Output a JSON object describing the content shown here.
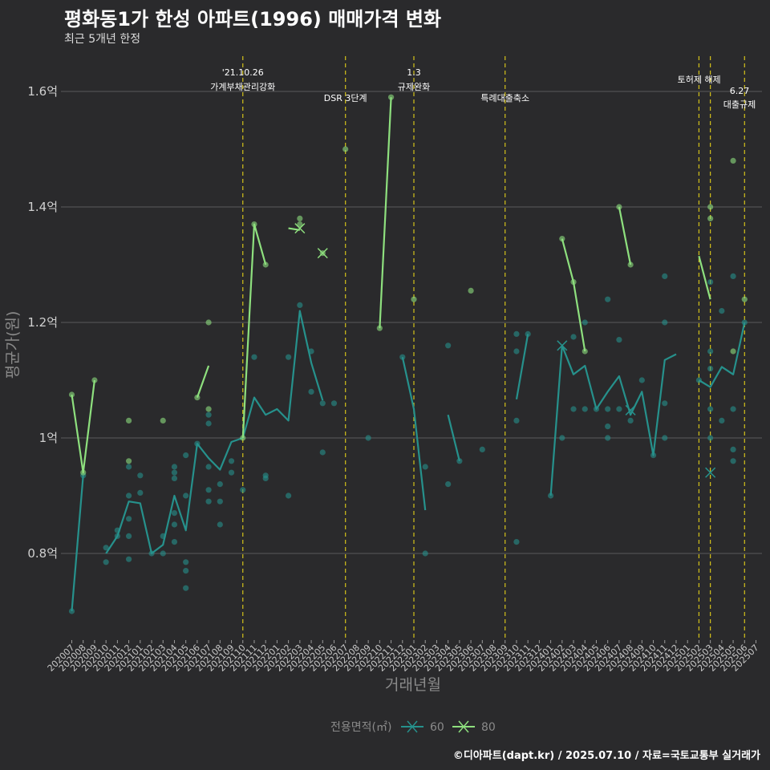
{
  "title": "평화동1가 한성 아파트(1996) 매매가격 변화",
  "subtitle": "최근 5개년 한정",
  "caption": "©디아파트(dapt.kr) / 2025.07.10 / 자료=국토교통부 실거래가",
  "chart_data": {
    "type": "line",
    "xlabel": "거래년월",
    "ylabel": "평균가(원)",
    "ylim": [
      0.65,
      1.66
    ],
    "yticks": [
      0.8,
      1.0,
      1.2,
      1.4,
      1.6
    ],
    "ytick_labels": [
      "0.8억",
      "1억",
      "1.2억",
      "1.4억",
      "1.6억"
    ],
    "grid": true,
    "legend_title": "전용면적(㎡)",
    "legend_position": "bottom",
    "categories": [
      "202007",
      "202008",
      "202009",
      "202010",
      "202011",
      "202012",
      "202101",
      "202102",
      "202103",
      "202104",
      "202105",
      "202106",
      "202107",
      "202108",
      "202109",
      "202110",
      "202111",
      "202112",
      "202201",
      "202202",
      "202203",
      "202204",
      "202205",
      "202206",
      "202207",
      "202208",
      "202209",
      "202210",
      "202211",
      "202212",
      "202301",
      "202302",
      "202303",
      "202304",
      "202305",
      "202306",
      "202307",
      "202308",
      "202309",
      "202310",
      "202311",
      "202312",
      "202401",
      "202402",
      "202403",
      "202404",
      "202405",
      "202406",
      "202407",
      "202408",
      "202409",
      "202410",
      "202411",
      "202412",
      "202501",
      "202502",
      "202503",
      "202504",
      "202505",
      "202506",
      "202507"
    ],
    "series": [
      {
        "name": "60",
        "color": "#26918c",
        "line": [
          [
            0,
            0.7
          ],
          [
            1,
            0.935
          ],
          [
            2,
            null
          ],
          [
            3,
            0.8
          ],
          [
            4,
            0.83
          ],
          [
            5,
            0.89
          ],
          [
            6,
            0.887
          ],
          [
            7,
            0.8
          ],
          [
            8,
            0.815
          ],
          [
            9,
            0.9
          ],
          [
            10,
            0.84
          ],
          [
            11,
            0.99
          ],
          [
            12,
            0.965
          ],
          [
            13,
            0.945
          ],
          [
            14,
            0.993
          ],
          [
            15,
            1.0
          ],
          [
            16,
            1.07
          ],
          [
            17,
            1.04
          ],
          [
            18,
            1.05
          ],
          [
            19,
            1.03
          ],
          [
            20,
            1.22
          ],
          [
            21,
            1.13
          ],
          [
            22,
            1.065
          ],
          [
            23,
            null
          ],
          [
            24,
            1.05
          ],
          [
            25,
            null
          ],
          [
            26,
            1.0
          ],
          [
            27,
            null
          ],
          [
            28,
            null
          ],
          [
            29,
            1.14
          ],
          [
            30,
            1.05
          ],
          [
            31,
            0.875
          ],
          [
            32,
            null
          ],
          [
            33,
            1.04
          ],
          [
            34,
            0.96
          ],
          [
            35,
            null
          ],
          [
            36,
            null
          ],
          [
            37,
            null
          ],
          [
            38,
            null
          ],
          [
            39,
            1.067
          ],
          [
            40,
            1.18
          ],
          [
            41,
            null
          ],
          [
            42,
            0.9
          ],
          [
            43,
            1.16
          ],
          [
            44,
            1.11
          ],
          [
            45,
            1.125
          ],
          [
            46,
            1.05
          ],
          [
            47,
            1.08
          ],
          [
            48,
            1.107
          ],
          [
            49,
            1.04
          ],
          [
            50,
            1.08
          ],
          [
            51,
            0.97
          ],
          [
            52,
            1.135
          ],
          [
            53,
            1.145
          ],
          [
            54,
            null
          ],
          [
            55,
            1.1
          ],
          [
            56,
            1.088
          ],
          [
            57,
            1.123
          ],
          [
            58,
            1.11
          ],
          [
            59,
            1.2
          ],
          [
            60,
            null
          ]
        ],
        "points": [
          [
            0,
            0.7
          ],
          [
            1,
            0.935
          ],
          [
            3,
            0.785
          ],
          [
            3,
            0.81
          ],
          [
            4,
            0.84
          ],
          [
            4,
            0.83
          ],
          [
            5,
            0.95
          ],
          [
            5,
            0.9
          ],
          [
            5,
            0.86
          ],
          [
            5,
            0.83
          ],
          [
            5,
            0.79
          ],
          [
            6,
            0.905
          ],
          [
            6,
            0.935
          ],
          [
            7,
            0.8
          ],
          [
            8,
            0.8
          ],
          [
            8,
            0.83
          ],
          [
            9,
            0.95
          ],
          [
            9,
            0.94
          ],
          [
            9,
            0.93
          ],
          [
            9,
            0.87
          ],
          [
            9,
            0.85
          ],
          [
            9,
            0.82
          ],
          [
            10,
            0.97
          ],
          [
            10,
            0.9
          ],
          [
            10,
            0.785
          ],
          [
            10,
            0.77
          ],
          [
            10,
            0.74
          ],
          [
            11,
            0.99
          ],
          [
            12,
            1.04
          ],
          [
            12,
            1.025
          ],
          [
            12,
            0.95
          ],
          [
            12,
            0.91
          ],
          [
            12,
            0.89
          ],
          [
            13,
            0.92
          ],
          [
            13,
            0.89
          ],
          [
            13,
            0.85
          ],
          [
            14,
            0.96
          ],
          [
            14,
            0.94
          ],
          [
            15,
            0.91
          ],
          [
            16,
            1.14
          ],
          [
            17,
            0.935
          ],
          [
            17,
            0.93
          ],
          [
            19,
            0.9
          ],
          [
            19,
            1.14
          ],
          [
            20,
            1.23
          ],
          [
            21,
            1.15
          ],
          [
            21,
            1.08
          ],
          [
            22,
            1.06
          ],
          [
            22,
            0.975
          ],
          [
            23,
            1.06
          ],
          [
            26,
            1.0
          ],
          [
            29,
            1.14
          ],
          [
            31,
            0.95
          ],
          [
            31,
            0.8
          ],
          [
            33,
            0.92
          ],
          [
            33,
            1.16
          ],
          [
            34,
            0.96
          ],
          [
            36,
            0.98
          ],
          [
            39,
            1.18
          ],
          [
            39,
            1.15
          ],
          [
            39,
            1.03
          ],
          [
            39,
            0.82
          ],
          [
            40,
            1.18
          ],
          [
            42,
            0.9
          ],
          [
            43,
            1.0
          ],
          [
            44,
            1.175
          ],
          [
            44,
            1.05
          ],
          [
            45,
            1.2
          ],
          [
            45,
            1.05
          ],
          [
            46,
            1.05
          ],
          [
            47,
            1.24
          ],
          [
            47,
            1.05
          ],
          [
            47,
            1.02
          ],
          [
            47,
            1.0
          ],
          [
            48,
            1.17
          ],
          [
            48,
            1.05
          ],
          [
            49,
            1.03
          ],
          [
            50,
            1.1
          ],
          [
            51,
            0.97
          ],
          [
            52,
            1.28
          ],
          [
            52,
            1.2
          ],
          [
            52,
            1.06
          ],
          [
            52,
            1.0
          ],
          [
            55,
            1.1
          ],
          [
            56,
            1.27
          ],
          [
            56,
            1.15
          ],
          [
            56,
            1.12
          ],
          [
            56,
            1.05
          ],
          [
            56,
            1.0
          ],
          [
            57,
            1.22
          ],
          [
            57,
            1.03
          ],
          [
            58,
            1.28
          ],
          [
            58,
            1.05
          ],
          [
            58,
            0.98
          ],
          [
            58,
            0.96
          ],
          [
            59,
            1.2
          ]
        ],
        "markers": [
          [
            43,
            1.16
          ],
          [
            49,
            1.048
          ],
          [
            56,
            0.94
          ]
        ]
      },
      {
        "name": "80",
        "color": "#8ee07e",
        "line": [
          [
            0,
            1.075
          ],
          [
            1,
            0.94
          ],
          [
            2,
            1.1
          ],
          [
            3,
            null
          ],
          [
            4,
            null
          ],
          [
            5,
            0.996
          ],
          [
            6,
            null
          ],
          [
            7,
            null
          ],
          [
            8,
            1.03
          ],
          [
            9,
            null
          ],
          [
            10,
            null
          ],
          [
            11,
            1.07
          ],
          [
            12,
            1.125
          ],
          [
            13,
            null
          ],
          [
            14,
            null
          ],
          [
            15,
            1.0
          ],
          [
            16,
            1.37
          ],
          [
            17,
            1.3
          ],
          [
            18,
            null
          ],
          [
            19,
            1.363
          ],
          [
            20,
            1.36
          ],
          [
            21,
            null
          ],
          [
            22,
            1.32
          ],
          [
            23,
            null
          ],
          [
            24,
            1.5
          ],
          [
            25,
            null
          ],
          [
            26,
            null
          ],
          [
            27,
            1.19
          ],
          [
            28,
            1.59
          ],
          [
            29,
            null
          ],
          [
            30,
            1.24
          ],
          [
            31,
            null
          ],
          [
            32,
            null
          ],
          [
            33,
            null
          ],
          [
            34,
            null
          ],
          [
            35,
            1.255
          ],
          [
            36,
            null
          ],
          [
            37,
            null
          ],
          [
            38,
            null
          ],
          [
            39,
            null
          ],
          [
            40,
            null
          ],
          [
            41,
            null
          ],
          [
            42,
            null
          ],
          [
            43,
            1.345
          ],
          [
            44,
            1.27
          ],
          [
            45,
            1.15
          ],
          [
            46,
            null
          ],
          [
            47,
            null
          ],
          [
            48,
            1.4
          ],
          [
            49,
            1.3
          ],
          [
            50,
            null
          ],
          [
            51,
            null
          ],
          [
            52,
            null
          ],
          [
            53,
            1.388
          ],
          [
            54,
            null
          ],
          [
            55,
            1.315
          ],
          [
            56,
            1.24
          ],
          [
            57,
            null
          ],
          [
            58,
            null
          ],
          [
            59,
            null
          ],
          [
            60,
            null
          ]
        ],
        "points": [
          [
            0,
            1.075
          ],
          [
            1,
            0.94
          ],
          [
            2,
            1.1
          ],
          [
            5,
            1.03
          ],
          [
            5,
            0.96
          ],
          [
            8,
            1.03
          ],
          [
            11,
            1.07
          ],
          [
            12,
            1.2
          ],
          [
            12,
            1.05
          ],
          [
            15,
            1.0
          ],
          [
            16,
            1.37
          ],
          [
            17,
            1.3
          ],
          [
            20,
            1.38
          ],
          [
            20,
            1.37
          ],
          [
            22,
            1.32
          ],
          [
            24,
            1.5
          ],
          [
            27,
            1.19
          ],
          [
            28,
            1.59
          ],
          [
            30,
            1.24
          ],
          [
            35,
            1.255
          ],
          [
            43,
            1.345
          ],
          [
            44,
            1.27
          ],
          [
            45,
            1.15
          ],
          [
            48,
            1.4
          ],
          [
            49,
            1.3
          ],
          [
            56,
            1.4
          ],
          [
            56,
            1.38
          ],
          [
            58,
            1.48
          ],
          [
            58,
            1.15
          ],
          [
            59,
            1.24
          ]
        ],
        "markers": [
          [
            20,
            1.363
          ],
          [
            22,
            1.32
          ]
        ]
      }
    ],
    "events": [
      {
        "index": 15,
        "label_top": "'21.10.26",
        "label_bottom": "가계부채관리강화",
        "level": "high"
      },
      {
        "index": 24,
        "label_top": "",
        "label_bottom": "DSR 3단계",
        "level": "low"
      },
      {
        "index": 30,
        "label_top": "1.3",
        "label_bottom": "규제완화",
        "level": "high"
      },
      {
        "index": 38,
        "label_top": "",
        "label_bottom": "특례대출축소",
        "level": "low"
      },
      {
        "index": 55,
        "label_top": "",
        "label_bottom": "",
        "level": "none"
      },
      {
        "index": 56,
        "label_top": "",
        "label_bottom": "토허제 해제",
        "level": "mid"
      },
      {
        "index": 59,
        "label_top": "6.27",
        "label_bottom": "대출규제",
        "level": "right"
      }
    ]
  }
}
